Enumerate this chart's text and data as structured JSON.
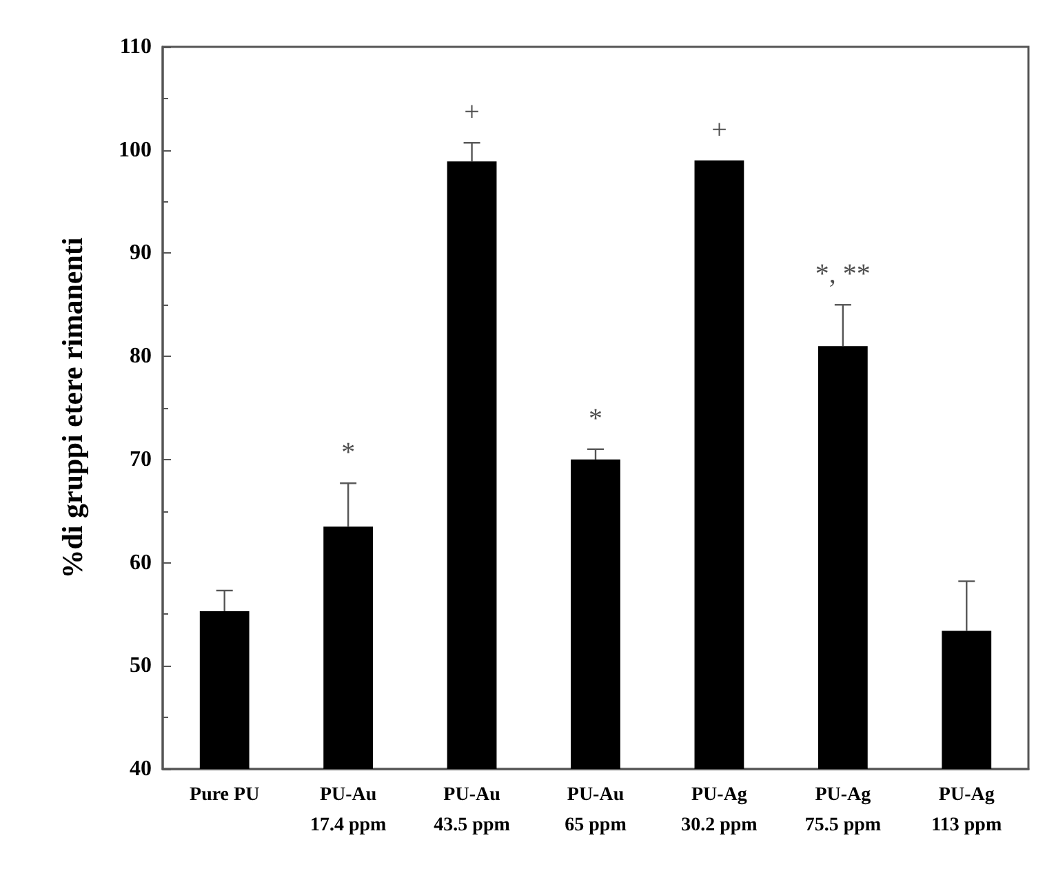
{
  "chart_data": {
    "type": "bar",
    "ylabel": "%di gruppi etere rimanenti",
    "categories": [
      "Pure PU",
      "PU-Au\n17.4 ppm",
      "PU-Au\n43.5 ppm",
      "PU-Au\n65 ppm",
      "PU-Ag\n30.2 ppm",
      "PU-Ag\n75.5 ppm",
      "PU-Ag\n113 ppm"
    ],
    "values": [
      55.3,
      63.5,
      98.9,
      70,
      99,
      81,
      53.4
    ],
    "errors": [
      [
        55.3,
        57.3
      ],
      [
        63.5,
        67.7
      ],
      [
        98.9,
        100.7
      ],
      [
        70,
        71
      ],
      null,
      [
        81,
        85
      ],
      [
        53.4,
        58.2
      ]
    ],
    "color": "#000000",
    "ylim": [
      40,
      110
    ],
    "yticks": [
      40,
      50,
      60,
      70,
      80,
      90,
      100,
      110
    ],
    "grid": false,
    "annotations": [
      {
        "text": "*",
        "x": "PU-Au\n17.4 ppm",
        "y": 67.7
      },
      {
        "text": "+",
        "x": "PU-Au\n43.5 ppm",
        "y": 100.7
      },
      {
        "text": "*",
        "x": "PU-Au\n65 ppm",
        "y": 71
      },
      {
        "text": "+",
        "x": "PU-Ag\n30.2 ppm",
        "y": 99
      },
      {
        "text": "*, **",
        "x": "PU-Ag\n75.5 ppm",
        "y": 85
      }
    ]
  }
}
